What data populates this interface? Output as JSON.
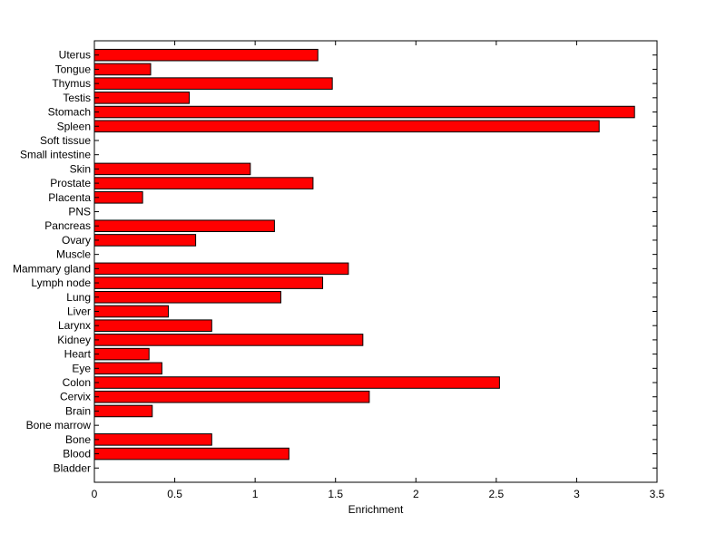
{
  "chart_data": {
    "type": "bar",
    "orientation": "horizontal",
    "title": "",
    "xlabel": "Enrichment",
    "ylabel": "",
    "xlim": [
      0,
      3.5
    ],
    "xticks": [
      0,
      0.5,
      1,
      1.5,
      2,
      2.5,
      3,
      3.5
    ],
    "xtick_labels": [
      "0",
      "0.5",
      "1",
      "1.5",
      "2",
      "2.5",
      "3",
      "3.5"
    ],
    "grid": false,
    "legend": "none",
    "bar_color": "#ff0000",
    "edge_color": "#000000",
    "categories": [
      "Bladder",
      "Blood",
      "Bone",
      "Bone marrow",
      "Brain",
      "Cervix",
      "Colon",
      "Eye",
      "Heart",
      "Kidney",
      "Larynx",
      "Liver",
      "Lung",
      "Lymph node",
      "Mammary gland",
      "Muscle",
      "Ovary",
      "Pancreas",
      "PNS",
      "Placenta",
      "Prostate",
      "Skin",
      "Small intestine",
      "Soft tissue",
      "Spleen",
      "Stomach",
      "Testis",
      "Thymus",
      "Tongue",
      "Uterus"
    ],
    "values": [
      0,
      1.21,
      0.73,
      0,
      0.36,
      1.71,
      2.52,
      0.42,
      0.34,
      1.67,
      0.73,
      0.46,
      1.16,
      1.42,
      1.58,
      0,
      0.63,
      1.12,
      0,
      0.3,
      1.36,
      0.97,
      0,
      0,
      3.14,
      3.36,
      0.59,
      1.48,
      0.35,
      1.39
    ]
  }
}
